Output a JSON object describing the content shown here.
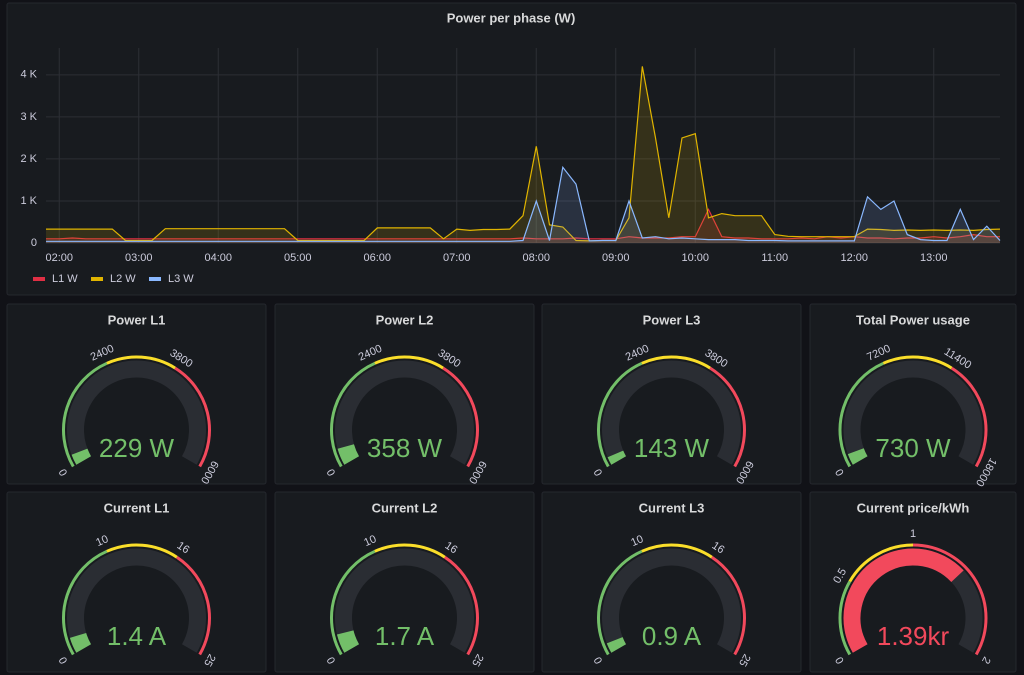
{
  "chart_data": [
    {
      "type": "line",
      "title": "Power per phase (W)",
      "x": [
        "01:50",
        "02:00",
        "02:10",
        "02:20",
        "02:30",
        "02:40",
        "02:50",
        "03:00",
        "03:10",
        "03:20",
        "03:30",
        "03:40",
        "03:50",
        "04:00",
        "04:10",
        "04:20",
        "04:30",
        "04:40",
        "04:50",
        "05:00",
        "05:10",
        "05:20",
        "05:30",
        "05:40",
        "05:50",
        "06:00",
        "06:10",
        "06:20",
        "06:30",
        "06:40",
        "06:50",
        "07:00",
        "07:10",
        "07:20",
        "07:30",
        "07:40",
        "07:50",
        "08:00",
        "08:10",
        "08:20",
        "08:30",
        "08:40",
        "08:50",
        "09:00",
        "09:10",
        "09:20",
        "09:30",
        "09:40",
        "09:50",
        "10:00",
        "10:10",
        "10:20",
        "10:30",
        "10:40",
        "10:50",
        "11:00",
        "11:10",
        "11:20",
        "11:30",
        "11:40",
        "11:50",
        "12:00",
        "12:10",
        "12:20",
        "12:30",
        "12:40",
        "12:50",
        "13:00",
        "13:10",
        "13:20",
        "13:30",
        "13:40",
        "13:50"
      ],
      "xlim": [
        "01:50",
        "13:50"
      ],
      "xticks": [
        "02:00",
        "03:00",
        "04:00",
        "05:00",
        "06:00",
        "07:00",
        "08:00",
        "09:00",
        "10:00",
        "11:00",
        "12:00",
        "13:00"
      ],
      "ylim": [
        0,
        4400
      ],
      "yticks": [
        0,
        {
          "value": 1000,
          "label": "1 K"
        },
        {
          "value": 2000,
          "label": "2 K"
        },
        {
          "value": 3000,
          "label": "3 K"
        },
        {
          "value": 4000,
          "label": "4 K"
        }
      ],
      "grid": true,
      "legend": "bottom-left",
      "series": [
        {
          "name": "L1 W",
          "color": "#e02f44",
          "values": [
            100,
            100,
            120,
            100,
            100,
            100,
            100,
            100,
            100,
            100,
            100,
            100,
            100,
            100,
            100,
            100,
            100,
            100,
            100,
            100,
            100,
            100,
            100,
            100,
            100,
            100,
            100,
            100,
            100,
            100,
            100,
            100,
            100,
            100,
            100,
            100,
            120,
            100,
            100,
            100,
            120,
            100,
            100,
            100,
            150,
            120,
            120,
            120,
            150,
            150,
            800,
            150,
            120,
            120,
            100,
            100,
            100,
            120,
            100,
            150,
            120,
            150,
            120,
            120,
            100,
            120,
            120,
            150,
            120,
            150,
            200,
            150,
            150
          ]
        },
        {
          "name": "L2 W",
          "color": "#e0b400",
          "values": [
            330,
            330,
            330,
            330,
            330,
            330,
            60,
            60,
            60,
            340,
            340,
            340,
            340,
            340,
            340,
            340,
            340,
            340,
            340,
            60,
            60,
            60,
            60,
            60,
            60,
            360,
            360,
            360,
            360,
            360,
            100,
            330,
            300,
            320,
            320,
            330,
            650,
            2300,
            430,
            380,
            60,
            50,
            60,
            60,
            600,
            4200,
            2500,
            600,
            2500,
            2600,
            600,
            700,
            650,
            650,
            650,
            200,
            160,
            150,
            150,
            150,
            150,
            150,
            330,
            320,
            300,
            310,
            300,
            310,
            300,
            310,
            300,
            320,
            330
          ]
        },
        {
          "name": "L3 W",
          "color": "#8ab8ff",
          "values": [
            40,
            40,
            40,
            40,
            40,
            40,
            40,
            40,
            40,
            40,
            40,
            40,
            40,
            40,
            40,
            40,
            40,
            40,
            40,
            40,
            40,
            40,
            40,
            40,
            40,
            40,
            40,
            40,
            40,
            40,
            40,
            40,
            40,
            40,
            40,
            40,
            60,
            1000,
            60,
            1800,
            1400,
            50,
            60,
            60,
            1000,
            120,
            150,
            100,
            120,
            100,
            80,
            80,
            80,
            60,
            60,
            60,
            50,
            50,
            50,
            50,
            50,
            50,
            1100,
            800,
            1000,
            200,
            80,
            60,
            60,
            800,
            80,
            400,
            60
          ]
        }
      ]
    },
    {
      "type": "gauge",
      "title": "Power L1",
      "values": [
        229
      ],
      "value_labels": [
        "229 W"
      ],
      "ylim": [
        0,
        6000
      ],
      "yticks": [
        0,
        2400,
        3800,
        6000
      ],
      "colors": [
        "#73bf69",
        "#fade2a",
        "#f2495c"
      ]
    },
    {
      "type": "gauge",
      "title": "Power L2",
      "values": [
        358
      ],
      "value_labels": [
        "358 W"
      ],
      "ylim": [
        0,
        6000
      ],
      "yticks": [
        0,
        2400,
        3800,
        6000
      ],
      "colors": [
        "#73bf69",
        "#fade2a",
        "#f2495c"
      ]
    },
    {
      "type": "gauge",
      "title": "Power L3",
      "values": [
        143
      ],
      "value_labels": [
        "143 W"
      ],
      "ylim": [
        0,
        6000
      ],
      "yticks": [
        0,
        2400,
        3800,
        6000
      ],
      "colors": [
        "#73bf69",
        "#fade2a",
        "#f2495c"
      ]
    },
    {
      "type": "gauge",
      "title": "Total Power usage",
      "values": [
        730
      ],
      "value_labels": [
        "730 W"
      ],
      "ylim": [
        0,
        18000
      ],
      "yticks": [
        0,
        7200,
        11400,
        18000
      ],
      "colors": [
        "#73bf69",
        "#fade2a",
        "#f2495c"
      ]
    },
    {
      "type": "gauge",
      "title": "Current L1",
      "values": [
        1.4
      ],
      "value_labels": [
        "1.4 A"
      ],
      "ylim": [
        0,
        25
      ],
      "yticks": [
        0,
        10,
        16,
        25
      ],
      "colors": [
        "#73bf69",
        "#fade2a",
        "#f2495c"
      ]
    },
    {
      "type": "gauge",
      "title": "Current L2",
      "values": [
        1.7
      ],
      "value_labels": [
        "1.7 A"
      ],
      "ylim": [
        0,
        25
      ],
      "yticks": [
        0,
        10,
        16,
        25
      ],
      "colors": [
        "#73bf69",
        "#fade2a",
        "#f2495c"
      ]
    },
    {
      "type": "gauge",
      "title": "Current L3",
      "values": [
        0.9
      ],
      "value_labels": [
        "0.9 A"
      ],
      "ylim": [
        0,
        25
      ],
      "yticks": [
        0,
        10,
        16,
        25
      ],
      "colors": [
        "#73bf69",
        "#fade2a",
        "#f2495c"
      ]
    },
    {
      "type": "gauge",
      "title": "Current price/kWh",
      "values": [
        1.39
      ],
      "value_labels": [
        "1.39kr"
      ],
      "ylim": [
        0,
        2
      ],
      "yticks": [
        0,
        0.5,
        1,
        2
      ],
      "colors": [
        "#73bf69",
        "#fade2a",
        "#f2495c"
      ]
    }
  ]
}
